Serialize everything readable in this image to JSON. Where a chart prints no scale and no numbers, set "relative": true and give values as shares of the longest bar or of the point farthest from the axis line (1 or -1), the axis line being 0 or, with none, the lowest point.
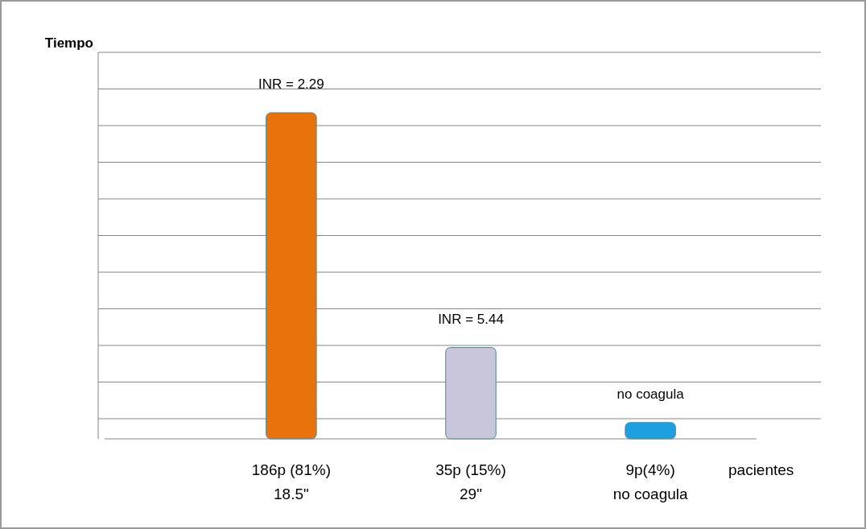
{
  "chart_data": {
    "type": "bar",
    "relative": true,
    "ylabel": "Tiempo",
    "xlabel": "pacientes",
    "categories": [
      "186p (81%)\n18.5\"",
      "35p (15%)\n29\"",
      "9p(4%)\nno coagula"
    ],
    "values": [
      1,
      0.28,
      0.05
    ],
    "colors": [
      "#e8720c",
      "#c9c5da",
      "#1e9fe0"
    ],
    "grid": true,
    "annotations": [
      "INR = 2.29",
      "INR = 5.44",
      "no  coagula"
    ]
  }
}
